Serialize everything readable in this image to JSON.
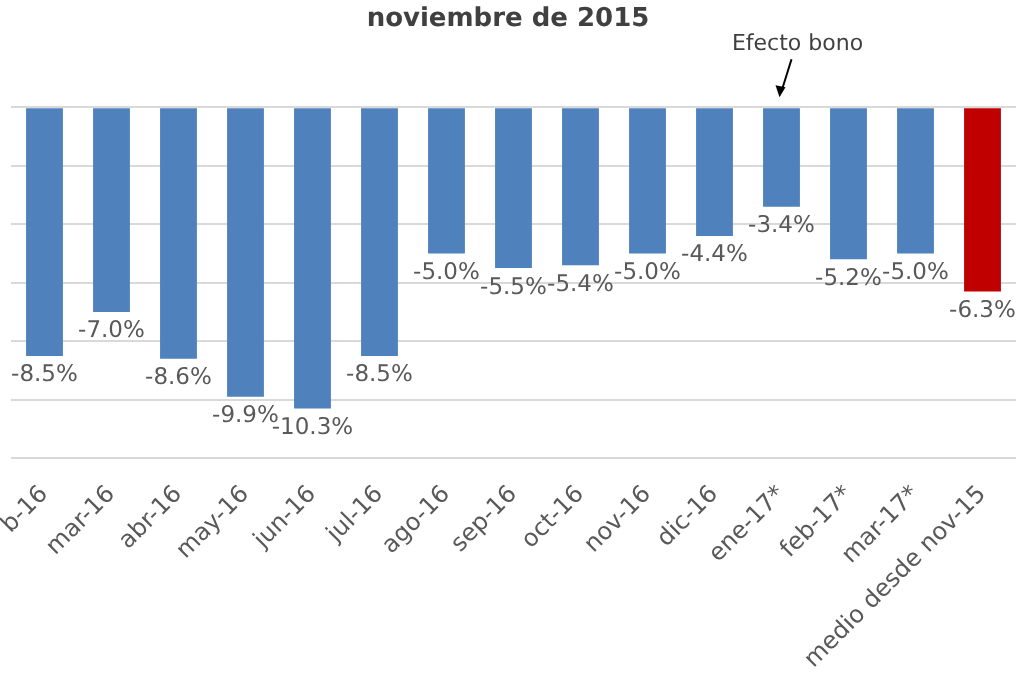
{
  "chart_data": {
    "type": "bar",
    "title": "noviembre de 2015",
    "categories": [
      "b-16",
      "mar-16",
      "abr-16",
      "may-16",
      "jun-16",
      "jul-16",
      "ago-16",
      "sep-16",
      "oct-16",
      "nov-16",
      "dic-16",
      "ene-17*",
      "feb-17*",
      "mar-17*",
      "medio desde nov-15"
    ],
    "values": [
      -8.5,
      -7.0,
      -8.6,
      -9.9,
      -10.3,
      -8.5,
      -5.0,
      -5.5,
      -5.4,
      -5.0,
      -4.4,
      -3.4,
      -5.2,
      -5.0,
      -6.3
    ],
    "colors": [
      "#4f81bd",
      "#4f81bd",
      "#4f81bd",
      "#4f81bd",
      "#4f81bd",
      "#4f81bd",
      "#4f81bd",
      "#4f81bd",
      "#4f81bd",
      "#4f81bd",
      "#4f81bd",
      "#4f81bd",
      "#4f81bd",
      "#4f81bd",
      "#c00000"
    ],
    "value_labels": [
      "-8.5%",
      "-7.0%",
      "-8.6%",
      "-9.9%",
      "-10.3%",
      "-8.5%",
      "-5.0%",
      "-5.5%",
      "-5.4%",
      "-5.0%",
      "-4.4%",
      "-3.4%",
      "-5.2%",
      "-5.0%",
      "-6.3%"
    ],
    "ylim": [
      -12,
      0
    ],
    "yticks": [
      {
        "value": 0,
        "label": null
      },
      {
        "value": -2,
        "label": null
      },
      {
        "value": -4,
        "label": null
      },
      {
        "value": -6,
        "label": null
      },
      {
        "value": -8,
        "label": null
      },
      {
        "value": -10,
        "label": null
      },
      {
        "value": -12,
        "label": null
      }
    ],
    "tick_labels": "x",
    "grid": "y",
    "legend": false,
    "annotations": [
      {
        "text": "Efecto bono",
        "x": "ene-17*",
        "y": 0
      }
    ]
  }
}
